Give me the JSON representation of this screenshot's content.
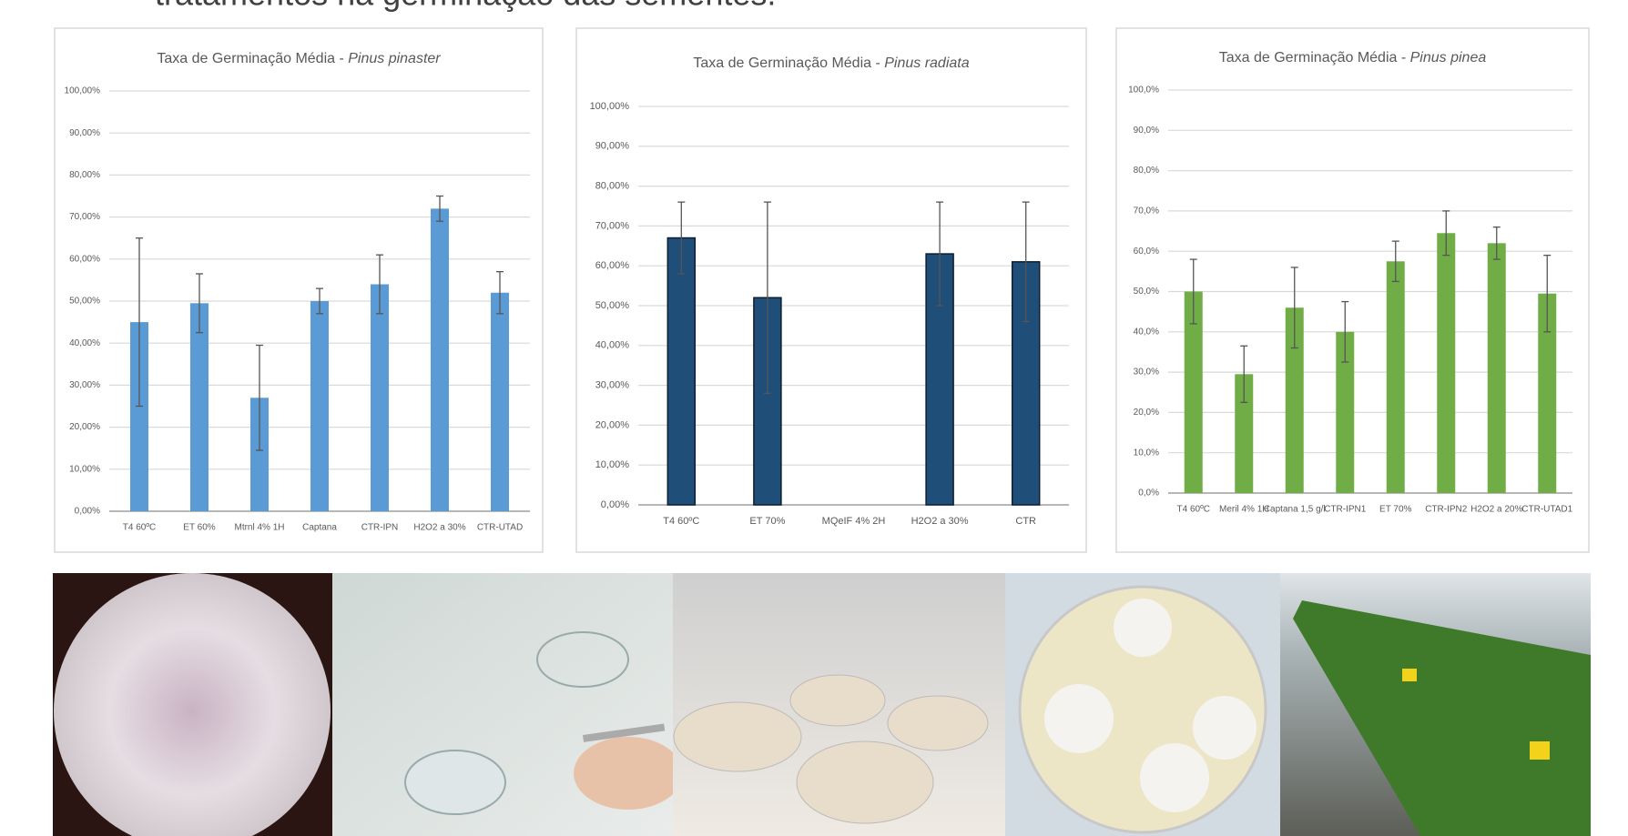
{
  "heading": "tratamentos na germinação das sementes.",
  "chart_data": [
    {
      "type": "bar",
      "title": "Taxa de Germinação Média -",
      "title_italic": "Pinus pinaster",
      "color": "#5b9bd5",
      "grid": true,
      "categories": [
        "T4 60ºC",
        "ET 60%",
        "Mtrnl 4% 1H",
        "Captana",
        "CTR-IPN",
        "H2O2 a 30%",
        "CTR-UTAD"
      ],
      "values": [
        45,
        49.5,
        27,
        50,
        54,
        72,
        52
      ],
      "errors": [
        20,
        7,
        12.5,
        3,
        7,
        3,
        5
      ],
      "ylim": [
        0,
        100
      ],
      "yticks": [
        {
          "value": 0,
          "label": "0,00%"
        },
        {
          "value": 10,
          "label": "10,00%"
        },
        {
          "value": 20,
          "label": "20,00%"
        },
        {
          "value": 30,
          "label": "30,00%"
        },
        {
          "value": 40,
          "label": "40,00%"
        },
        {
          "value": 50,
          "label": "50,00%"
        },
        {
          "value": 60,
          "label": "60,00%"
        },
        {
          "value": 70,
          "label": "70,00%"
        },
        {
          "value": 80,
          "label": "80,00%"
        },
        {
          "value": 90,
          "label": "90,00%"
        },
        {
          "value": 100,
          "label": "100,00%"
        }
      ]
    },
    {
      "type": "bar",
      "title": "Taxa de Germinação Média -",
      "title_italic": "Pinus radiata",
      "color": "#1f4e79",
      "grid": true,
      "categories": [
        "T4 60ºC",
        "ET 70%",
        "MQeIF 4% 2H",
        "H2O2 a 30%",
        "CTR"
      ],
      "values": [
        67,
        52,
        0,
        63,
        61
      ],
      "errors": [
        9,
        24,
        0,
        13,
        15
      ],
      "ylim": [
        0,
        100
      ],
      "yticks": [
        {
          "value": 0,
          "label": "0,00%"
        },
        {
          "value": 10,
          "label": "10,00%"
        },
        {
          "value": 20,
          "label": "20,00%"
        },
        {
          "value": 30,
          "label": "30,00%"
        },
        {
          "value": 40,
          "label": "40,00%"
        },
        {
          "value": 50,
          "label": "50,00%"
        },
        {
          "value": 60,
          "label": "60,00%"
        },
        {
          "value": 70,
          "label": "70,00%"
        },
        {
          "value": 80,
          "label": "80,00%"
        },
        {
          "value": 90,
          "label": "90,00%"
        },
        {
          "value": 100,
          "label": "100,00%"
        }
      ]
    },
    {
      "type": "bar",
      "title": "Taxa de Germinação Média -",
      "title_italic": "Pinus pinea",
      "color": "#70ad47",
      "grid": true,
      "categories": [
        "T4 60ºC",
        "Meril 4% 1H",
        "Captana 1,5 g/l",
        "CTR-IPN1",
        "ET 70%",
        "CTR-IPN2",
        "H2O2 a 20%",
        "CTR-UTAD1"
      ],
      "values": [
        50,
        29.5,
        46,
        40,
        57.5,
        64.5,
        62,
        49.5
      ],
      "errors": [
        8,
        7,
        10,
        7.5,
        5,
        5.5,
        4,
        9.5
      ],
      "ylim": [
        0,
        100
      ],
      "yticks": [
        {
          "value": 0,
          "label": "0,0%"
        },
        {
          "value": 10,
          "label": "10,0%"
        },
        {
          "value": 20,
          "label": "20,0%"
        },
        {
          "value": 30,
          "label": "30,0%"
        },
        {
          "value": 40,
          "label": "40,0%"
        },
        {
          "value": 50,
          "label": "50,0%"
        },
        {
          "value": 60,
          "label": "60,0%"
        },
        {
          "value": 70,
          "label": "70,0%"
        },
        {
          "value": 80,
          "label": "80,0%"
        },
        {
          "value": 90,
          "label": "90,0%"
        },
        {
          "value": 100,
          "label": "100,0%"
        }
      ]
    }
  ]
}
